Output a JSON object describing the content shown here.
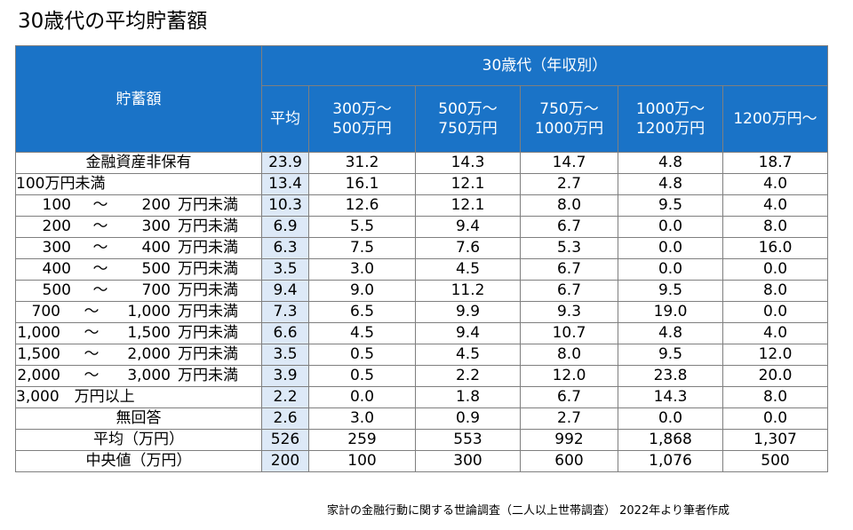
{
  "title": "30歳代の平均貯蓄額",
  "table": {
    "row_header": "貯蓄額",
    "group_header": "30歳代（年収別）",
    "columns": [
      {
        "lines": [
          "平均"
        ]
      },
      {
        "lines": [
          "300万～",
          "500万円"
        ]
      },
      {
        "lines": [
          "500万～",
          "750万円"
        ]
      },
      {
        "lines": [
          "750万～",
          "1000万円"
        ]
      },
      {
        "lines": [
          "1000万～",
          "1200万円"
        ]
      },
      {
        "lines": [
          "1200万円～"
        ]
      }
    ],
    "rows": [
      {
        "label": "金融資産非保有",
        "values": [
          "23.9",
          "31.2",
          "14.3",
          "14.7",
          "4.8",
          "18.7"
        ]
      },
      {
        "label": "100万円未満",
        "values": [
          "13.4",
          "16.1",
          "12.1",
          "2.7",
          "4.8",
          "4.0"
        ]
      },
      {
        "range": [
          "100",
          "～",
          "200",
          "万円未満"
        ],
        "values": [
          "10.3",
          "12.6",
          "12.1",
          "8.0",
          "9.5",
          "4.0"
        ]
      },
      {
        "range": [
          "200",
          "～",
          "300",
          "万円未満"
        ],
        "values": [
          "6.9",
          "5.5",
          "9.4",
          "6.7",
          "0.0",
          "8.0"
        ]
      },
      {
        "range": [
          "300",
          "～",
          "400",
          "万円未満"
        ],
        "values": [
          "6.3",
          "7.5",
          "7.6",
          "5.3",
          "0.0",
          "16.0"
        ]
      },
      {
        "range": [
          "400",
          "～",
          "500",
          "万円未満"
        ],
        "values": [
          "3.5",
          "3.0",
          "4.5",
          "6.7",
          "0.0",
          "0.0"
        ]
      },
      {
        "range": [
          "500",
          "～",
          "700",
          "万円未満"
        ],
        "values": [
          "9.4",
          "9.0",
          "11.2",
          "6.7",
          "9.5",
          "8.0"
        ]
      },
      {
        "range": [
          "700",
          "～",
          "1,000",
          "万円未満"
        ],
        "values": [
          "7.3",
          "6.5",
          "9.9",
          "9.3",
          "19.0",
          "0.0"
        ]
      },
      {
        "range": [
          "1,000",
          "～",
          "1,500",
          "万円未満"
        ],
        "values": [
          "6.6",
          "4.5",
          "9.4",
          "10.7",
          "4.8",
          "4.0"
        ]
      },
      {
        "range": [
          "1,500",
          "～",
          "2,000",
          "万円未満"
        ],
        "values": [
          "3.5",
          "0.5",
          "4.5",
          "8.0",
          "9.5",
          "12.0"
        ]
      },
      {
        "range": [
          "2,000",
          "～",
          "3,000",
          "万円未満"
        ],
        "values": [
          "3.9",
          "0.5",
          "2.2",
          "12.0",
          "23.8",
          "20.0"
        ]
      },
      {
        "label": "3,000　万円以上",
        "values": [
          "2.2",
          "0.0",
          "1.8",
          "6.7",
          "14.3",
          "8.0"
        ]
      },
      {
        "label": "無回答",
        "values": [
          "2.6",
          "3.0",
          "0.9",
          "2.7",
          "0.0",
          "0.0"
        ]
      },
      {
        "label": "平均（万円）",
        "values": [
          "526",
          "259",
          "553",
          "992",
          "1,868",
          "1,307"
        ]
      },
      {
        "label": "中央値（万円）",
        "values": [
          "200",
          "100",
          "300",
          "600",
          "1,076",
          "500"
        ]
      }
    ]
  },
  "footnote": "家計の金融行動に関する世論調査（二人以上世帯調査） 2022年より筆者作成",
  "colors": {
    "header_bg": "#1a73c7",
    "header_text": "#ffffff",
    "avg_column_bg": "#dde9f7",
    "border": "#7f7f7f"
  }
}
